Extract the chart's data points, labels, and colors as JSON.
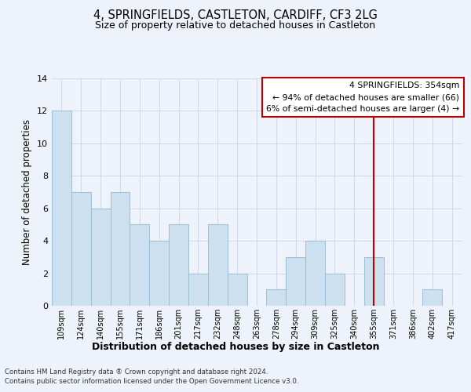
{
  "title": "4, SPRINGFIELDS, CASTLETON, CARDIFF, CF3 2LG",
  "subtitle": "Size of property relative to detached houses in Castleton",
  "xlabel": "Distribution of detached houses by size in Castleton",
  "ylabel": "Number of detached properties",
  "categories": [
    "109sqm",
    "124sqm",
    "140sqm",
    "155sqm",
    "171sqm",
    "186sqm",
    "201sqm",
    "217sqm",
    "232sqm",
    "248sqm",
    "263sqm",
    "278sqm",
    "294sqm",
    "309sqm",
    "325sqm",
    "340sqm",
    "355sqm",
    "371sqm",
    "386sqm",
    "402sqm",
    "417sqm"
  ],
  "values": [
    12,
    7,
    6,
    7,
    5,
    4,
    5,
    2,
    5,
    2,
    0,
    1,
    3,
    4,
    2,
    0,
    3,
    0,
    0,
    1,
    0
  ],
  "bar_color": "#cce0f0",
  "bar_edge_color": "#9bbdd4",
  "grid_color": "#d0d8e8",
  "background_color": "#eef2fa",
  "vline_x_index": 16,
  "vline_color": "#bb0000",
  "annotation_title": "4 SPRINGFIELDS: 354sqm",
  "annotation_line1": "← 94% of detached houses are smaller (66)",
  "annotation_line2": "6% of semi-detached houses are larger (4) →",
  "annotation_box_color": "#ffffff",
  "annotation_box_edge": "#bb0000",
  "ylim": [
    0,
    14
  ],
  "yticks": [
    0,
    2,
    4,
    6,
    8,
    10,
    12,
    14
  ],
  "footnote1": "Contains HM Land Registry data ® Crown copyright and database right 2024.",
  "footnote2": "Contains public sector information licensed under the Open Government Licence v3.0."
}
